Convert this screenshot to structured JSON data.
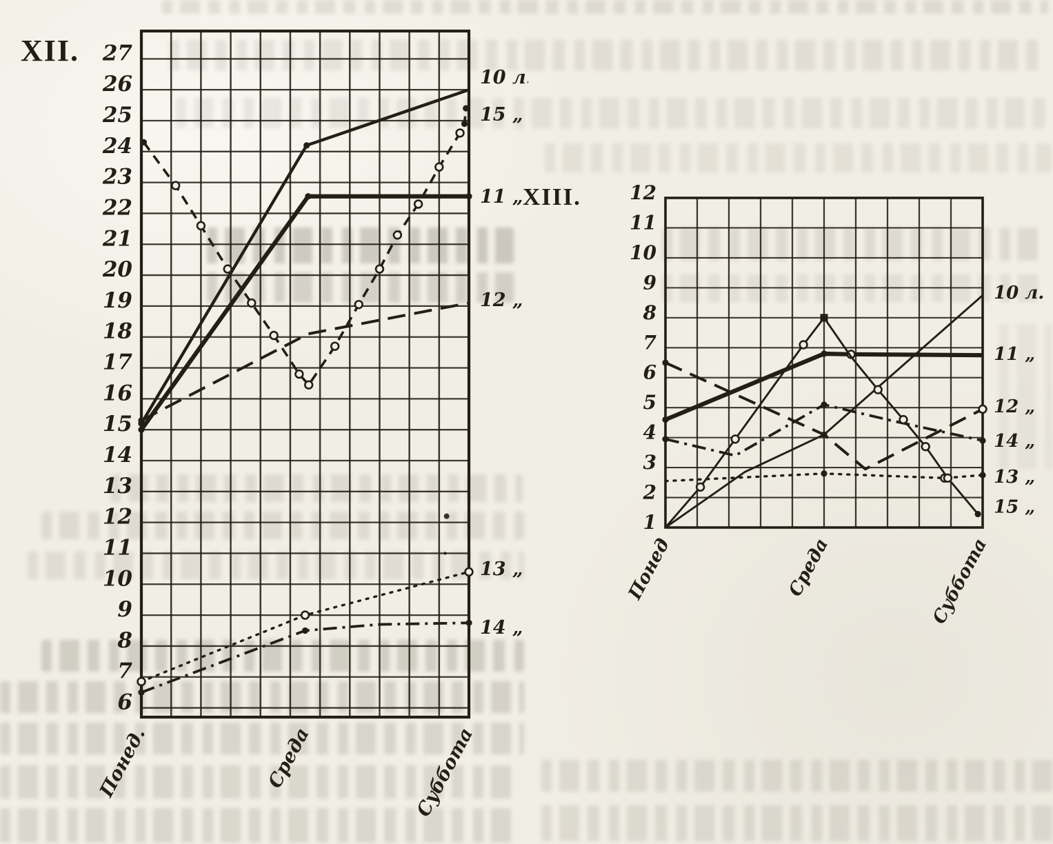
{
  "page": {
    "title_left": "XII.",
    "title_right": "XIII."
  },
  "colors": {
    "ink": "#241f16",
    "paper": "#f1eee5"
  },
  "chart_data": [
    {
      "id": "XII",
      "type": "line",
      "title": "XII.",
      "xlabel": "",
      "ylabel": "",
      "x_categories": [
        "Понед.",
        "Среда",
        "Суббота"
      ],
      "x_category_cols": [
        0,
        5.5,
        11
      ],
      "x_cols": 11,
      "grid": true,
      "legend_position": "right-edge",
      "ylim": [
        5.7,
        27.9
      ],
      "y_ticks": [
        27,
        26,
        25,
        24,
        23,
        22,
        21,
        20,
        19,
        18,
        17,
        16,
        15,
        14,
        13,
        12,
        11,
        10,
        9,
        8,
        7,
        6
      ],
      "series": [
        {
          "name": "10 л.",
          "style": "solid-thick",
          "label_y": 26.4,
          "points": [
            [
              0,
              15.2
            ],
            [
              5.55,
              24.2
            ],
            [
              11,
              26.0
            ]
          ],
          "dots": [
            0,
            1
          ],
          "circles": [],
          "squares": []
        },
        {
          "name": "15 „",
          "style": "dash-circles",
          "label_y": 25.2,
          "points": [
            [
              0.08,
              24.3
            ],
            [
              1.15,
              22.9
            ],
            [
              2.0,
              21.6
            ],
            [
              2.9,
              20.2
            ],
            [
              3.7,
              19.1
            ],
            [
              4.45,
              18.05
            ],
            [
              5.3,
              16.8
            ],
            [
              5.62,
              16.45
            ],
            [
              6.5,
              17.7
            ],
            [
              7.3,
              19.05
            ],
            [
              8.0,
              20.2
            ],
            [
              8.6,
              21.3
            ],
            [
              9.3,
              22.3
            ],
            [
              10.0,
              23.5
            ],
            [
              10.7,
              24.6
            ],
            [
              10.85,
              24.9
            ],
            [
              10.9,
              25.4
            ]
          ],
          "dots": [
            0,
            15,
            16
          ],
          "circles": [
            1,
            2,
            3,
            4,
            5,
            6,
            7,
            8,
            9,
            10,
            11,
            12,
            13,
            14
          ],
          "squares": []
        },
        {
          "name": "11 „",
          "style": "solid-heavy",
          "label_y": 22.55,
          "points": [
            [
              0,
              15.0
            ],
            [
              5.6,
              22.55
            ],
            [
              11,
              22.55
            ]
          ],
          "dots": [
            0,
            1,
            2
          ],
          "circles": [],
          "squares": []
        },
        {
          "name": "12 „",
          "style": "long-dash",
          "label_y": 19.2,
          "points": [
            [
              0,
              15.3
            ],
            [
              5.6,
              18.1
            ],
            [
              11,
              19.1
            ]
          ],
          "dots": [
            0
          ],
          "circles": [],
          "squares": []
        },
        {
          "name": "13 „",
          "style": "dotted",
          "label_y": 10.5,
          "points": [
            [
              0,
              6.85
            ],
            [
              5.5,
              9.0
            ],
            [
              11,
              10.4
            ]
          ],
          "dots": [],
          "circles": [
            0,
            1,
            2
          ],
          "squares": []
        },
        {
          "name": "14 „",
          "style": "dash-dot",
          "label_y": 8.6,
          "points": [
            [
              0,
              6.5
            ],
            [
              5.5,
              8.5
            ],
            [
              8,
              8.7
            ],
            [
              11,
              8.75
            ]
          ],
          "dots": [
            0,
            1,
            3
          ],
          "circles": [],
          "squares": []
        }
      ],
      "ink_specks": [
        [
          10.25,
          12.2
        ],
        [
          10.2,
          11.0
        ]
      ]
    },
    {
      "id": "XIII",
      "type": "line",
      "title": "XIII.",
      "xlabel": "",
      "ylabel": "",
      "x_categories": [
        "Понед",
        "Среда",
        "Суббота"
      ],
      "x_category_cols": [
        0,
        5,
        10
      ],
      "x_cols": 10,
      "grid": true,
      "legend_position": "right-edge",
      "ylim": [
        1,
        12
      ],
      "y_ticks": [
        12,
        11,
        10,
        9,
        8,
        7,
        6,
        5,
        4,
        3,
        2,
        1
      ],
      "series": [
        {
          "name": "10 л.",
          "style": "thin",
          "label_y": 8.85,
          "points": [
            [
              0,
              1.0
            ],
            [
              2.5,
              2.85
            ],
            [
              5,
              4.1
            ],
            [
              10,
              8.75
            ]
          ],
          "dots": [
            2
          ],
          "circles": [],
          "squares": []
        },
        {
          "name": "11 „",
          "style": "solid-heavy",
          "label_y": 6.8,
          "points": [
            [
              0,
              4.6
            ],
            [
              5,
              6.8
            ],
            [
              5.85,
              6.78
            ],
            [
              10,
              6.75
            ]
          ],
          "dots": [
            0,
            1
          ],
          "circles": [
            2
          ],
          "squares": []
        },
        {
          "name": "12 „",
          "style": "long-dash",
          "label_y": 5.05,
          "points": [
            [
              0,
              6.5
            ],
            [
              5,
              4.1
            ],
            [
              6.3,
              2.95
            ],
            [
              10,
              4.95
            ]
          ],
          "dots": [
            0
          ],
          "circles": [
            3
          ],
          "squares": []
        },
        {
          "name": "14 „",
          "style": "dash-dot",
          "label_y": 3.9,
          "points": [
            [
              0,
              3.95
            ],
            [
              2.2,
              3.4
            ],
            [
              5,
              5.1
            ],
            [
              7.2,
              4.55
            ],
            [
              10,
              3.9
            ]
          ],
          "dots": [
            0,
            2,
            4
          ],
          "circles": [],
          "squares": []
        },
        {
          "name": "13 „",
          "style": "dotted",
          "label_y": 2.7,
          "points": [
            [
              0,
              2.55
            ],
            [
              5,
              2.8
            ],
            [
              8.8,
              2.65
            ],
            [
              10,
              2.75
            ]
          ],
          "dots": [
            1,
            3
          ],
          "circles": [
            2
          ],
          "squares": []
        },
        {
          "name": "15 „",
          "style": "thin",
          "label_y": 1.7,
          "points": [
            [
              0,
              1.0
            ],
            [
              1.1,
              2.35
            ],
            [
              2.2,
              3.95
            ],
            [
              4.35,
              7.1
            ],
            [
              5,
              8.0
            ],
            [
              5.85,
              6.7
            ],
            [
              6.7,
              5.6
            ],
            [
              7.5,
              4.6
            ],
            [
              8.2,
              3.7
            ],
            [
              8.9,
              2.65
            ],
            [
              9.85,
              1.45
            ]
          ],
          "dots": [
            10
          ],
          "circles": [
            1,
            2,
            3,
            6,
            7,
            8,
            9
          ],
          "squares": [
            4
          ]
        }
      ],
      "ink_specks": []
    }
  ]
}
